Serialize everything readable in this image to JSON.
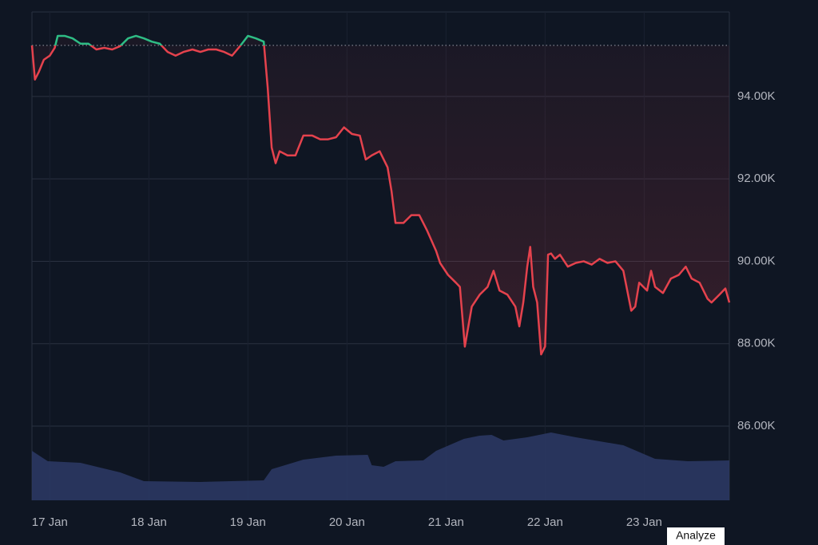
{
  "chart_data": {
    "type": "line",
    "baseline": 95240,
    "series": [
      {
        "color": "#e5424d",
        "above_color": "#2ebd85",
        "x": [
          16.82,
          16.85,
          16.89,
          16.94,
          17.0,
          17.05,
          17.08,
          17.15,
          17.23,
          17.31,
          17.39,
          17.47,
          17.55,
          17.63,
          17.71,
          17.79,
          17.87,
          17.95,
          18.03,
          18.11,
          18.19,
          18.27,
          18.35,
          18.44,
          18.52,
          18.6,
          18.68,
          18.76,
          18.84,
          18.92,
          19.0,
          19.08,
          19.16,
          19.2,
          19.24,
          19.28,
          19.32,
          19.4,
          19.48,
          19.56,
          19.65,
          19.73,
          19.81,
          19.89,
          19.97,
          20.05,
          20.13,
          20.19,
          20.25,
          20.33,
          20.41,
          20.45,
          20.49,
          20.57,
          20.65,
          20.73,
          20.81,
          20.9,
          20.94,
          21.02,
          21.1,
          21.14,
          21.19,
          21.26,
          21.34,
          21.42,
          21.48,
          21.54,
          21.62,
          21.7,
          21.74,
          21.78,
          21.82,
          21.85,
          21.88,
          21.92,
          21.96,
          22.0,
          22.03,
          22.06,
          22.1,
          22.15,
          22.23,
          22.31,
          22.39,
          22.47,
          22.55,
          22.63,
          22.71,
          22.79,
          22.87,
          22.91,
          22.95,
          23.03,
          23.07,
          23.11,
          23.19,
          23.27,
          23.35,
          23.42,
          23.48,
          23.56,
          23.64,
          23.68,
          23.76,
          23.82,
          23.86
        ],
        "values": [
          95240,
          94410,
          94600,
          94890,
          94990,
          95180,
          95470,
          95470,
          95410,
          95280,
          95280,
          95140,
          95180,
          95140,
          95220,
          95410,
          95470,
          95410,
          95330,
          95280,
          95080,
          94990,
          95080,
          95140,
          95080,
          95140,
          95140,
          95080,
          94990,
          95220,
          95470,
          95410,
          95330,
          94210,
          92760,
          92380,
          92670,
          92570,
          92570,
          93050,
          93050,
          92960,
          92960,
          93010,
          93250,
          93090,
          93050,
          92470,
          92570,
          92670,
          92280,
          91700,
          90930,
          90930,
          91120,
          91120,
          90740,
          90250,
          89960,
          89670,
          89480,
          89380,
          87930,
          88900,
          89190,
          89380,
          89770,
          89290,
          89190,
          88900,
          88420,
          89000,
          89870,
          90350,
          89380,
          89000,
          87740,
          87930,
          90160,
          90190,
          90060,
          90160,
          89870,
          89960,
          90000,
          89920,
          90060,
          89960,
          90000,
          89770,
          88800,
          88900,
          89480,
          89290,
          89770,
          89380,
          89230,
          89580,
          89670,
          89870,
          89580,
          89480,
          89090,
          89000,
          89190,
          89340,
          89000
        ]
      },
      {
        "color": "#2d3a66",
        "axis": "y2",
        "x": [
          16.82,
          16.98,
          17.31,
          17.71,
          17.95,
          18.52,
          19.16,
          19.24,
          19.56,
          19.89,
          20.21,
          20.25,
          20.37,
          20.49,
          20.77,
          20.9,
          21.18,
          21.34,
          21.46,
          21.58,
          21.82,
          22.06,
          22.31,
          22.79,
          23.11,
          23.44,
          23.86
        ],
        "values": [
          62,
          49,
          47,
          35,
          24,
          23,
          25,
          39,
          51,
          56,
          57,
          44,
          42,
          49,
          50,
          62,
          77,
          81,
          82,
          75,
          79,
          85,
          79,
          69,
          52,
          49,
          50
        ]
      }
    ],
    "xlim": [
      16.82,
      23.86
    ],
    "xticks": [
      {
        "value": 17,
        "label": "17 Jan"
      },
      {
        "value": 18,
        "label": "18 Jan"
      },
      {
        "value": 19,
        "label": "19 Jan"
      },
      {
        "value": 20,
        "label": "20 Jan"
      },
      {
        "value": 21,
        "label": "21 Jan"
      },
      {
        "value": 22,
        "label": "22 Jan"
      },
      {
        "value": 23,
        "label": "23 Jan"
      }
    ],
    "ylim": [
      84200,
      96050
    ],
    "yticks": [
      {
        "value": 86000,
        "label": "86.00K"
      },
      {
        "value": 88000,
        "label": "88.00K"
      },
      {
        "value": 90000,
        "label": "90.00K"
      },
      {
        "value": 92000,
        "label": "92.00K"
      },
      {
        "value": 94000,
        "label": "94.00K"
      }
    ],
    "y2lim": [
      0,
      612
    ],
    "grid": true,
    "button": "Analyze"
  }
}
